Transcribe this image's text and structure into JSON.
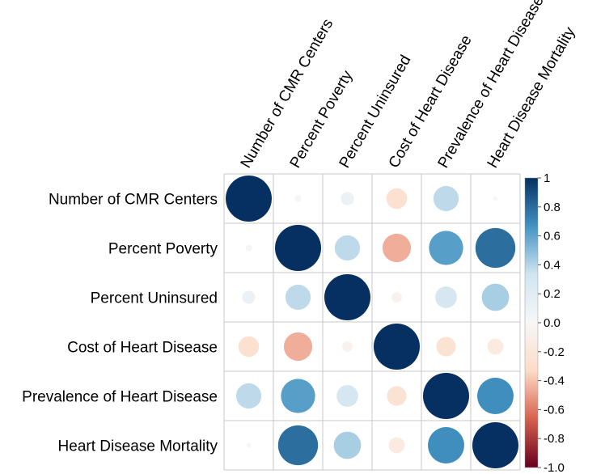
{
  "chart_data": {
    "type": "heatmap",
    "variant": "correlation-matrix-circles",
    "variables": [
      "Number of CMR Centers",
      "Percent Poverty",
      "Percent Uninsured",
      "Cost of Heart Disease",
      "Prevalence of Heart Disease",
      "Heart Disease Mortality"
    ],
    "matrix": [
      [
        1.0,
        0.02,
        0.08,
        -0.2,
        0.3,
        0.01
      ],
      [
        0.02,
        1.0,
        0.3,
        -0.38,
        0.55,
        0.75
      ],
      [
        0.08,
        0.3,
        1.0,
        -0.05,
        0.22,
        0.35
      ],
      [
        -0.2,
        -0.38,
        -0.05,
        1.0,
        -0.18,
        -0.12
      ],
      [
        0.3,
        0.55,
        0.22,
        -0.18,
        1.0,
        0.62
      ],
      [
        0.01,
        0.75,
        0.35,
        -0.12,
        0.62,
        1.0
      ]
    ],
    "colorbar": {
      "range": [
        -1.0,
        1.0
      ],
      "ticks": [
        "1",
        "0.8",
        "0.6",
        "0.4",
        "0.2",
        "0.0",
        "-0.2",
        "-0.4",
        "-0.6",
        "-0.8",
        "-1.0"
      ],
      "colors": {
        "neg_strong": "#67001f",
        "neg_mid": "#d6604d",
        "neg_light": "#fddbc7",
        "zero": "#f7f7f7",
        "pos_light": "#d1e5f0",
        "pos_mid": "#4393c3",
        "pos_strong": "#053061"
      }
    },
    "title": "",
    "xlabel": "",
    "ylabel": ""
  }
}
